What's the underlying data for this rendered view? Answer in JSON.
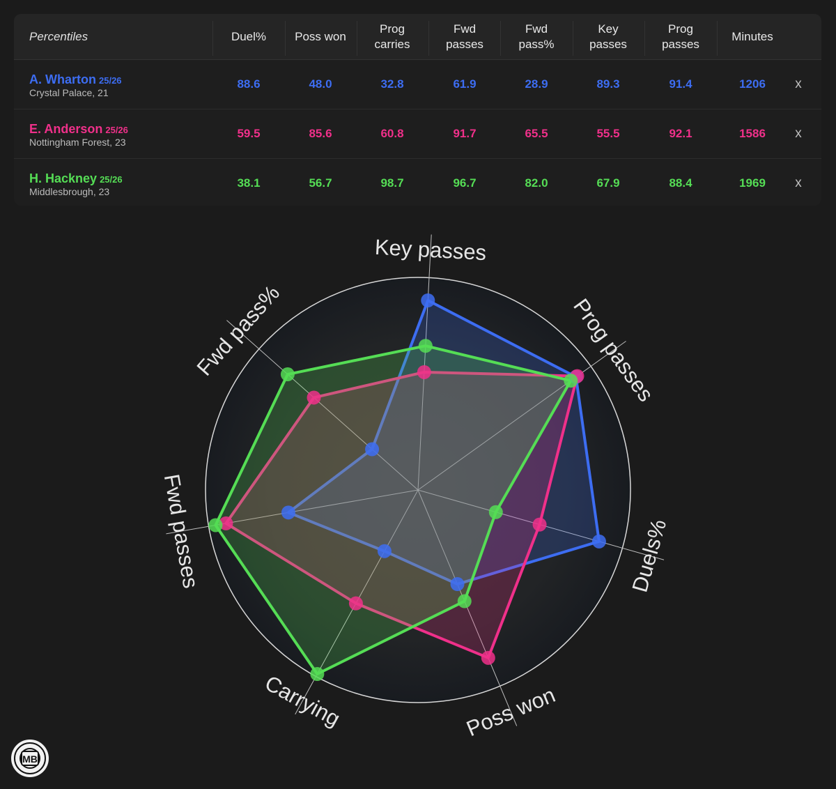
{
  "table": {
    "corner_label": "Percentiles",
    "columns": [
      "Duel%",
      "Poss won",
      "Prog\ncarries",
      "Fwd\npasses",
      "Fwd\npass%",
      "Key\npasses",
      "Prog\npasses",
      "Minutes"
    ],
    "remove_label": "x",
    "players": [
      {
        "name": "A. Wharton",
        "season": "25/26",
        "club": "Crystal Palace, 21",
        "color": "#3d6df2",
        "values": [
          "88.6",
          "48.0",
          "32.8",
          "61.9",
          "28.9",
          "89.3",
          "91.4",
          "1206"
        ]
      },
      {
        "name": "E. Anderson",
        "season": "25/26",
        "club": "Nottingham Forest, 23",
        "color": "#f0308a",
        "values": [
          "59.5",
          "85.6",
          "60.8",
          "91.7",
          "65.5",
          "55.5",
          "92.1",
          "1586"
        ]
      },
      {
        "name": "H. Hackney",
        "season": "25/26",
        "club": "Middlesbrough, 23",
        "color": "#55dd55",
        "values": [
          "38.1",
          "56.7",
          "98.7",
          "96.7",
          "82.0",
          "67.9",
          "88.4",
          "1969"
        ]
      }
    ]
  },
  "chart_data": {
    "type": "radar",
    "axes": [
      "Key passes",
      "Prog passes",
      "Duels%",
      "Poss won",
      "Carrying",
      "Fwd passes",
      "Fwd pass%"
    ],
    "rlim": [
      0,
      100
    ],
    "series": [
      {
        "name": "A. Wharton",
        "color": "#3d6df2",
        "values": [
          89.3,
          91.4,
          88.6,
          48.0,
          32.8,
          61.9,
          28.9
        ]
      },
      {
        "name": "E. Anderson",
        "color": "#f0308a",
        "values": [
          55.5,
          92.1,
          59.5,
          85.6,
          60.8,
          91.7,
          65.5
        ]
      },
      {
        "name": "H. Hackney",
        "color": "#55dd55",
        "values": [
          67.9,
          88.4,
          38.1,
          56.7,
          98.7,
          96.7,
          82.0
        ]
      }
    ]
  },
  "logo": {
    "text": "MB"
  }
}
